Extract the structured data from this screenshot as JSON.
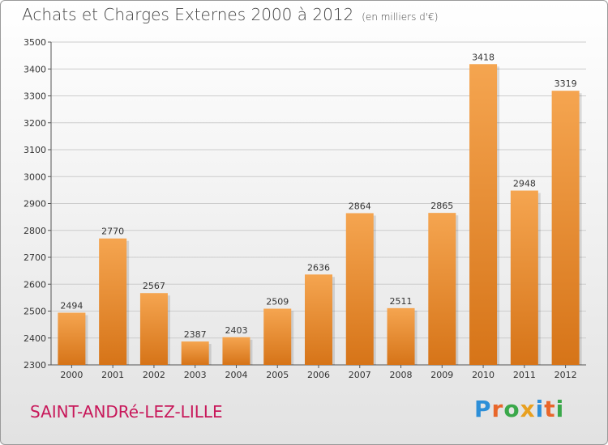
{
  "header": {
    "title": "Achats et Charges Externes 2000 à 2012",
    "subtitle": "(en milliers d'€)"
  },
  "footer": {
    "commune": "SAINT-ANDRé-LEZ-LILLE",
    "logo_text": "Proxiti",
    "logo_colors": [
      "#2d8fd8",
      "#e8662a",
      "#3aa84a",
      "#e8a020",
      "#2d8fd8",
      "#e8662a",
      "#3aa84a"
    ]
  },
  "colors": {
    "bar_top": "#f5a550",
    "bar_bottom": "#d67418",
    "grid": "#cccccc",
    "axis": "#555555",
    "text": "#333333"
  },
  "chart_data": {
    "type": "bar",
    "categories": [
      "2000",
      "2001",
      "2002",
      "2003",
      "2004",
      "2005",
      "2006",
      "2007",
      "2008",
      "2009",
      "2010",
      "2011",
      "2012"
    ],
    "values": [
      2494,
      2770,
      2567,
      2387,
      2403,
      2509,
      2636,
      2864,
      2511,
      2865,
      3418,
      2948,
      3319
    ],
    "title": "Achats et Charges Externes 2000 à 2012",
    "subtitle": "(en milliers d'€)",
    "xlabel": "",
    "ylabel": "",
    "ylim": [
      2300,
      3500
    ],
    "yticks": [
      2300,
      2400,
      2500,
      2600,
      2700,
      2800,
      2900,
      3000,
      3100,
      3200,
      3300,
      3400,
      3500
    ],
    "grid": true,
    "data_labels": true
  }
}
